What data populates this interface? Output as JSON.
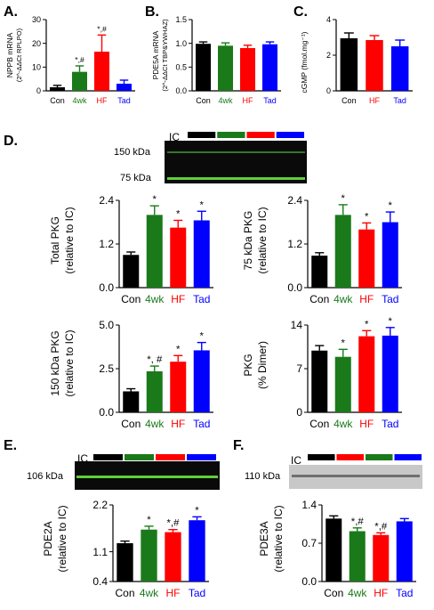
{
  "figure": {
    "colors": {
      "con": "#000000",
      "wk4": "#1a7a1a",
      "hf": "#ff0000",
      "tad": "#0000ff",
      "blot_bg": "#0a0a0a",
      "blot_band": "#5fcf3a",
      "blot_grey": "#c8c8c8"
    },
    "panels": {
      "A": {
        "letter": "A.",
        "ylabel": "NPPB mRNA",
        "ylabel2": "(2^-ΔΔCt RPLPO)"
      },
      "B": {
        "letter": "B.",
        "ylabel": "PDE5A mRNA",
        "ylabel2": "(2^-ΔΔCt TBP&YWHAZ)"
      },
      "C": {
        "letter": "C.",
        "ylabel": "cGMP (fmol.mg⁻¹)"
      },
      "D": {
        "letter": "D.",
        "blot_ic": "IC",
        "blot_label_150": "150 kDa",
        "blot_label_75": "75 kDa"
      },
      "D1": {
        "ylabel": "Total PKG",
        "ylabel2": "(relative to IC)"
      },
      "D2": {
        "ylabel": "75 kDa PKG",
        "ylabel2": "(relative to IC)"
      },
      "D3": {
        "ylabel": "150 kDa PKG",
        "ylabel2": "(relative to IC)"
      },
      "D4": {
        "ylabel": "PKG",
        "ylabel2": "(% Dimer)"
      },
      "E": {
        "letter": "E.",
        "blot_ic": "IC",
        "blot_label": "106 kDa",
        "ylabel": "PDE2A",
        "ylabel2": "(relative to IC)"
      },
      "F": {
        "letter": "F.",
        "blot_ic": "IC",
        "blot_label": "110 kDa",
        "ylabel": "PDE3A",
        "ylabel2": "(relative to IC)"
      }
    }
  },
  "chart_data": [
    {
      "id": "A",
      "type": "bar",
      "categories": [
        "Con",
        "4wk",
        "HF",
        "Tad"
      ],
      "series": [
        {
          "values": [
            1.5,
            8,
            16.5,
            3
          ]
        }
      ],
      "errors": [
        0.8,
        2.5,
        7,
        1.5
      ],
      "annotations": [
        "",
        "*,#",
        "*,#",
        ""
      ],
      "ylim": [
        0,
        30
      ],
      "yticks": [
        "0",
        "10",
        "20",
        "30"
      ]
    },
    {
      "id": "B",
      "type": "bar",
      "categories": [
        "Con",
        "4wk",
        "HF",
        "Tad"
      ],
      "series": [
        {
          "values": [
            0.99,
            0.95,
            0.9,
            0.98
          ]
        }
      ],
      "errors": [
        0.04,
        0.06,
        0.06,
        0.05
      ],
      "annotations": [
        "",
        "",
        "",
        ""
      ],
      "ylim": [
        0,
        1.5
      ],
      "yticks": [
        "0.0",
        "0.5",
        "1.0",
        "1.5"
      ]
    },
    {
      "id": "C",
      "type": "bar",
      "categories": [
        "Con",
        "HF",
        "Tad"
      ],
      "series": [
        {
          "values": [
            2.95,
            2.85,
            2.5
          ]
        }
      ],
      "errors": [
        0.3,
        0.25,
        0.35
      ],
      "annotations": [
        "",
        "",
        ""
      ],
      "ylim": [
        0,
        4
      ],
      "yticks": [
        "0",
        "2",
        "4"
      ]
    },
    {
      "id": "D1",
      "type": "bar",
      "categories": [
        "Con",
        "4wk",
        "HF",
        "Tad"
      ],
      "series": [
        {
          "values": [
            0.9,
            2.0,
            1.65,
            1.85
          ]
        }
      ],
      "errors": [
        0.08,
        0.25,
        0.2,
        0.25
      ],
      "annotations": [
        "",
        "*",
        "*",
        "*"
      ],
      "ylim": [
        0,
        2.4
      ],
      "yticks": [
        "0.0",
        "1.2",
        "2.4"
      ]
    },
    {
      "id": "D2",
      "type": "bar",
      "categories": [
        "Con",
        "4wk",
        "HF",
        "Tad"
      ],
      "series": [
        {
          "values": [
            0.88,
            2.0,
            1.6,
            1.8
          ]
        }
      ],
      "errors": [
        0.08,
        0.28,
        0.18,
        0.28
      ],
      "annotations": [
        "",
        "*",
        "*",
        "*"
      ],
      "ylim": [
        0,
        2.4
      ],
      "yticks": [
        "0.0",
        "1.2",
        "2.4"
      ]
    },
    {
      "id": "D3",
      "type": "bar",
      "categories": [
        "Con",
        "4wk",
        "HF",
        "Tad"
      ],
      "series": [
        {
          "values": [
            1.2,
            2.35,
            2.9,
            3.55
          ]
        }
      ],
      "errors": [
        0.15,
        0.3,
        0.35,
        0.45
      ],
      "annotations": [
        "",
        "*, #",
        "*",
        "*"
      ],
      "ylim": [
        0,
        5
      ],
      "yticks": [
        "0.0",
        "2.5",
        "5.0"
      ]
    },
    {
      "id": "D4",
      "type": "bar",
      "categories": [
        "Con",
        "4wk",
        "HF",
        "Tad"
      ],
      "series": [
        {
          "values": [
            9.9,
            8.9,
            12.2,
            12.3
          ]
        }
      ],
      "errors": [
        0.8,
        1.2,
        0.9,
        1.3
      ],
      "annotations": [
        "",
        "*",
        "*",
        "*"
      ],
      "ylim": [
        0,
        14
      ],
      "yticks": [
        "0",
        "7",
        "14"
      ]
    },
    {
      "id": "E",
      "type": "bar",
      "categories": [
        "Con",
        "4wk",
        "HF",
        "Tad"
      ],
      "series": [
        {
          "values": [
            1.3,
            1.62,
            1.56,
            1.84
          ]
        }
      ],
      "errors": [
        0.05,
        0.08,
        0.06,
        0.08
      ],
      "annotations": [
        "",
        "*",
        "*,#",
        "*"
      ],
      "ylim": [
        0.4,
        2.2
      ],
      "yticks": [
        "0.4",
        "1.1",
        "2.2"
      ]
    },
    {
      "id": "F",
      "type": "bar",
      "categories": [
        "Con",
        "4wk",
        "HF",
        "Tad"
      ],
      "series": [
        {
          "values": [
            1.15,
            0.92,
            0.85,
            1.1
          ]
        }
      ],
      "errors": [
        0.05,
        0.06,
        0.04,
        0.05
      ],
      "annotations": [
        "",
        "*,#",
        "*,#",
        ""
      ],
      "ylim": [
        0,
        1.4
      ],
      "yticks": [
        "0.0",
        "0.7",
        "1.4"
      ]
    }
  ]
}
